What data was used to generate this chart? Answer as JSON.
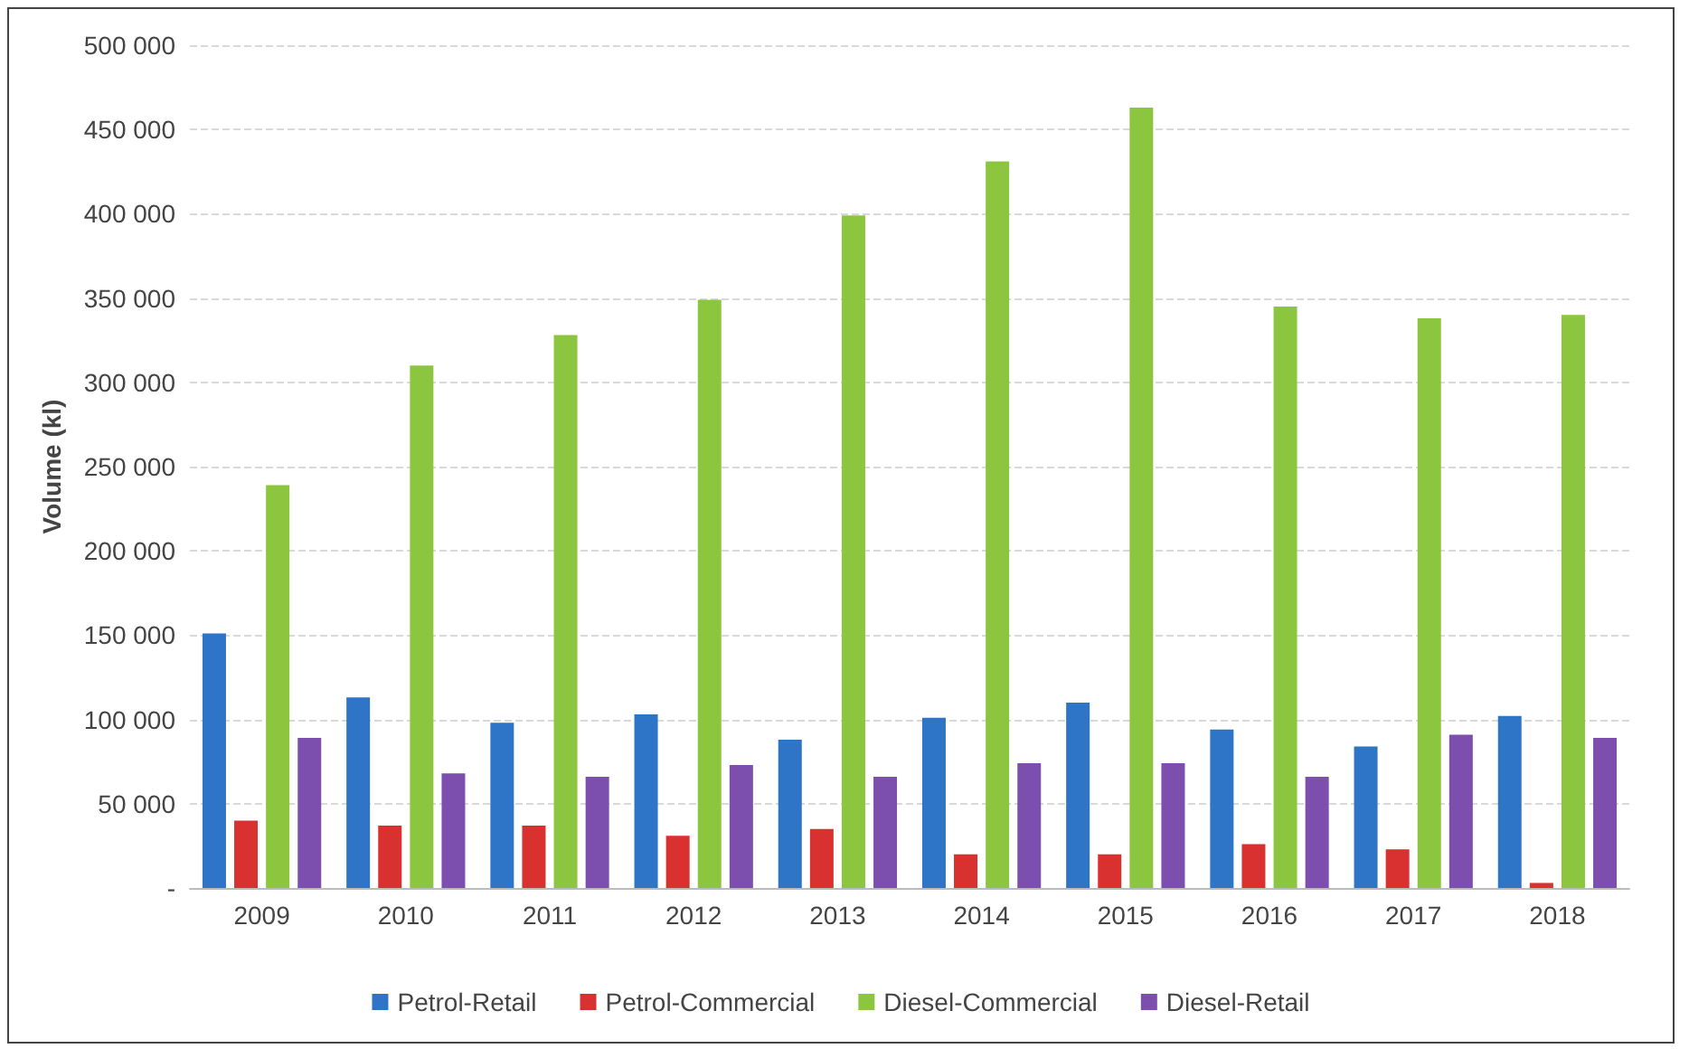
{
  "chart_data": {
    "type": "bar",
    "ylabel": "Volume (kl)",
    "categories": [
      "2009",
      "2010",
      "2011",
      "2012",
      "2013",
      "2014",
      "2015",
      "2016",
      "2017",
      "2018"
    ],
    "series": [
      {
        "name": "Petrol-Retail",
        "color": "#2e75c8",
        "values": [
          151000,
          113000,
          98000,
          103000,
          88000,
          101000,
          110000,
          94000,
          84000,
          102000
        ]
      },
      {
        "name": "Petrol-Commercial",
        "color": "#d93030",
        "values": [
          40000,
          37000,
          37000,
          31000,
          35000,
          20000,
          20000,
          26000,
          23000,
          3000
        ]
      },
      {
        "name": "Diesel-Commercial",
        "color": "#8cc63f",
        "values": [
          239000,
          310000,
          328000,
          349000,
          399000,
          431000,
          463000,
          345000,
          338000,
          340000
        ]
      },
      {
        "name": "Diesel-Retail",
        "color": "#7c4fae",
        "values": [
          89000,
          68000,
          66000,
          73000,
          66000,
          74000,
          74000,
          66000,
          91000,
          89000
        ]
      }
    ],
    "ylim": [
      0,
      500000
    ],
    "yticks": [
      {
        "value": 0,
        "label": "-"
      },
      {
        "value": 50000,
        "label": "50 000"
      },
      {
        "value": 100000,
        "label": "100 000"
      },
      {
        "value": 150000,
        "label": "150 000"
      },
      {
        "value": 200000,
        "label": "200 000"
      },
      {
        "value": 250000,
        "label": "250 000"
      },
      {
        "value": 300000,
        "label": "300 000"
      },
      {
        "value": 350000,
        "label": "350 000"
      },
      {
        "value": 400000,
        "label": "400 000"
      },
      {
        "value": 450000,
        "label": "450 000"
      },
      {
        "value": 500000,
        "label": "500 000"
      }
    ],
    "grid": "y",
    "legend": "bottom"
  }
}
